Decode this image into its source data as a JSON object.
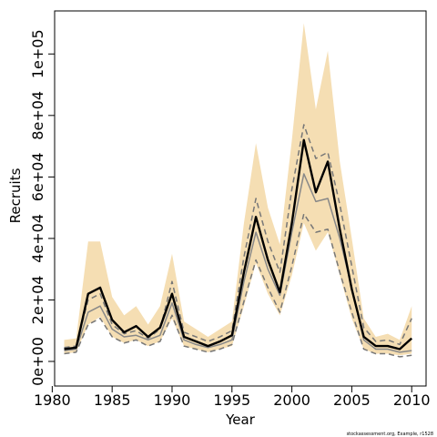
{
  "chart_data": {
    "type": "line",
    "title": "",
    "xlabel": "Year",
    "ylabel": "Recruits",
    "xlim": [
      1980.2,
      2011.2
    ],
    "ylim": [
      -8000,
      114000
    ],
    "xticks": [
      1980,
      1985,
      1990,
      1995,
      2000,
      2005,
      2010
    ],
    "xtick_labels": [
      "1980",
      "1985",
      "1990",
      "1995",
      "2000",
      "2005",
      "2010"
    ],
    "yticks": [
      0,
      20000,
      40000,
      60000,
      80000,
      100000
    ],
    "ytick_labels": [
      "0e+00",
      "2e+04",
      "4e+04",
      "6e+04",
      "8e+04",
      "1e+05"
    ],
    "grid": false,
    "legend": "none",
    "footnote": "stockassessment.org, Example, r1528",
    "x": [
      1981,
      1982,
      1983,
      1984,
      1985,
      1986,
      1987,
      1988,
      1989,
      1990,
      1991,
      1992,
      1993,
      1994,
      1995,
      1996,
      1997,
      1998,
      1999,
      2000,
      2001,
      2002,
      2003,
      2004,
      2005,
      2006,
      2007,
      2008,
      2009,
      2010
    ],
    "series": [
      {
        "role": "band",
        "color": "#f5deb3",
        "lower": [
          2500,
          3000,
          12000,
          14500,
          8000,
          6000,
          7000,
          5000,
          6500,
          14000,
          5000,
          4000,
          3000,
          4000,
          5000,
          18000,
          32000,
          22000,
          15000,
          28000,
          45000,
          36000,
          42000,
          28000,
          14000,
          4000,
          2500,
          2500,
          2000,
          2500
        ],
        "upper": [
          7000,
          7500,
          39000,
          39000,
          21000,
          15000,
          18000,
          12000,
          18000,
          35000,
          13000,
          10500,
          8000,
          10500,
          13000,
          45000,
          71000,
          50000,
          38000,
          72000,
          110000,
          82000,
          101000,
          65000,
          40000,
          14000,
          8000,
          9000,
          7000,
          18000
        ]
      },
      {
        "role": "estimate",
        "color": "#000000",
        "values": [
          4000,
          4500,
          22000,
          24000,
          13500,
          9500,
          11500,
          8000,
          11000,
          22000,
          8000,
          6500,
          5000,
          6500,
          8500,
          29000,
          47000,
          33000,
          22500,
          45000,
          72000,
          55000,
          65000,
          43000,
          23500,
          8000,
          5000,
          5000,
          4000,
          7500
        ]
      },
      {
        "role": "dashed-upper",
        "color": "#777777",
        "values": [
          4500,
          5000,
          20000,
          22000,
          12000,
          9000,
          10000,
          7500,
          10500,
          26000,
          9500,
          8000,
          6500,
          8000,
          10000,
          34000,
          53000,
          39000,
          29000,
          56000,
          77000,
          66000,
          68000,
          51000,
          31000,
          11000,
          6500,
          7000,
          5500,
          14000
        ]
      },
      {
        "role": "solid-gray",
        "color": "#888888",
        "values": [
          3500,
          4000,
          16000,
          18000,
          10500,
          8000,
          8500,
          7000,
          8500,
          19000,
          7000,
          5500,
          4500,
          5500,
          7000,
          26000,
          42000,
          30000,
          21500,
          42000,
          61000,
          52000,
          53000,
          40000,
          24000,
          7000,
          4000,
          4000,
          3000,
          3500
        ]
      },
      {
        "role": "dashed-lower",
        "color": "#777777",
        "values": [
          2500,
          3000,
          12000,
          14000,
          8000,
          6000,
          7000,
          5000,
          6500,
          15000,
          5000,
          4000,
          3000,
          4000,
          5500,
          19500,
          33000,
          24000,
          16000,
          31000,
          48000,
          42000,
          43000,
          29000,
          16000,
          4000,
          2500,
          2500,
          1500,
          2000
        ]
      }
    ]
  }
}
